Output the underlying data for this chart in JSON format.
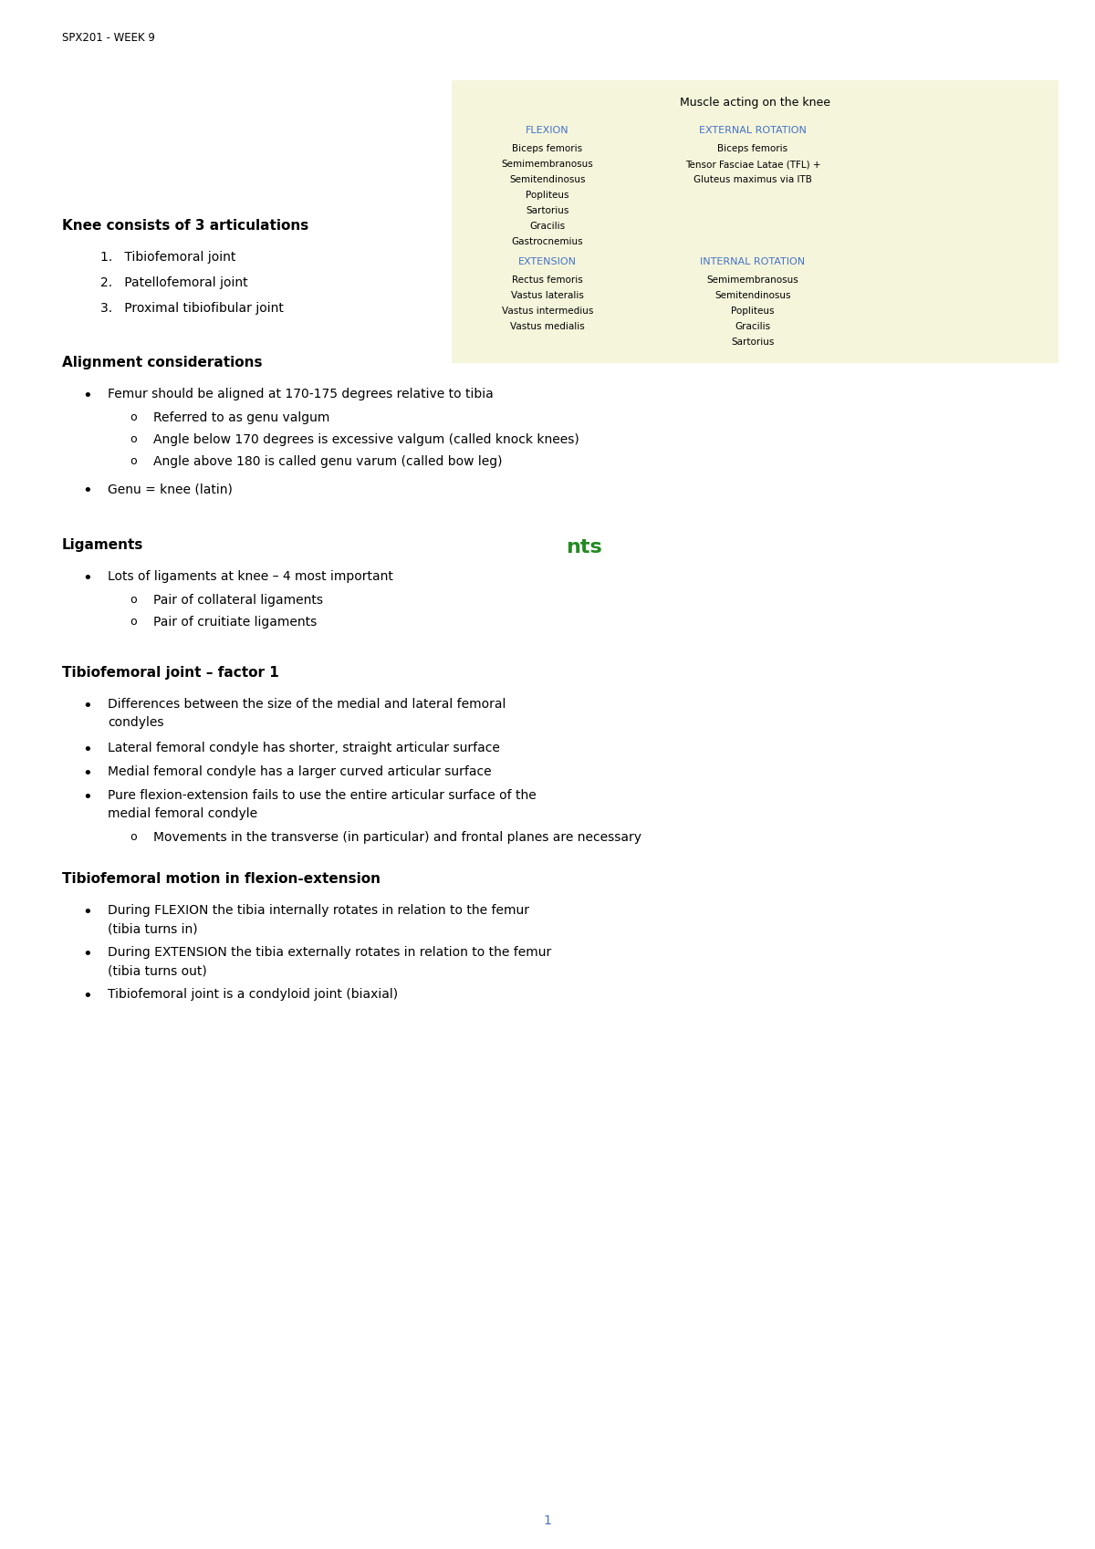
{
  "bg_color": "#ffffff",
  "header": "SPX201 - WEEK 9",
  "muscle_table_title": "Muscle acting on the knee",
  "flexion_label": "FLEXION",
  "external_rotation_label": "EXTERNAL ROTATION",
  "flexion_muscles": [
    "Biceps femoris",
    "Semimembranosus",
    "Semitendinosus",
    "Popliteus",
    "Sartorius",
    "Gracilis",
    "Gastrocnemius"
  ],
  "ext_rotation_muscles": [
    "Biceps femoris",
    "Tensor Fasciae Latae (TFL) +",
    "Gluteus maximus via ITB"
  ],
  "extension_label": "EXTENSION",
  "internal_rotation_label": "INTERNAL ROTATION",
  "extension_muscles": [
    "Rectus femoris",
    "Vastus lateralis",
    "Vastus intermedius",
    "Vastus medialis"
  ],
  "int_rotation_muscles": [
    "Semimembranosus",
    "Semitendinosus",
    "Popliteus",
    "Gracilis",
    "Sartorius"
  ],
  "section1_heading": "Knee consists of 3 articulations",
  "section1_items": [
    "Tibiofemoral joint",
    "Patellofemoral joint",
    "Proximal tibiofibular joint"
  ],
  "section2_heading": "Alignment considerations",
  "section2_bullet1": "Femur should be aligned at 170-175 degrees relative to tibia",
  "section2_sub1": "Referred to as genu valgum",
  "section2_sub2": "Angle below 170 degrees is excessive valgum (called knock knees)",
  "section2_sub3": "Angle above 180 is called genu varum (called bow leg)",
  "section2_bullet2": "Genu = knee (latin)",
  "section3_heading": "Ligaments",
  "section3_bullet1": "Lots of ligaments at knee – 4 most important",
  "section3_sub1": "Pair of collateral ligaments",
  "section3_sub2": "Pair of cruitiate ligaments",
  "section4_heading": "Tibiofemoral joint – factor 1",
  "section4_bullet1_line1": "Differences between the size of the medial and lateral femoral",
  "section4_bullet1_line2": "condyles",
  "section4_bullet2": "Lateral femoral condyle has shorter, straight articular surface",
  "section4_bullet3": "Medial femoral condyle has a larger curved articular surface",
  "section4_bullet4_line1": "Pure flexion-extension fails to use the entire articular surface of the",
  "section4_bullet4_line2": "medial femoral condyle",
  "section4_sub": "Movements in the transverse (in particular) and frontal planes are necessary",
  "section5_heading": "Tibiofemoral motion in flexion-extension",
  "section5_bullet1_line1": "During FLEXION the tibia internally rotates in relation to the femur",
  "section5_bullet1_line2": "(tibia turns in)",
  "section5_bullet2_line1": "During EXTENSION the tibia externally rotates in relation to the femur",
  "section5_bullet2_line2": "(tibia turns out)",
  "section5_bullet3": "Tibiofemoral joint is a condyloid joint (biaxial)",
  "page_number": "1",
  "nts_text": "nts",
  "text_color": "#000000",
  "blue_color": "#4472C4",
  "nts_color": "#228B22",
  "table_bg": "#F5F5DC"
}
